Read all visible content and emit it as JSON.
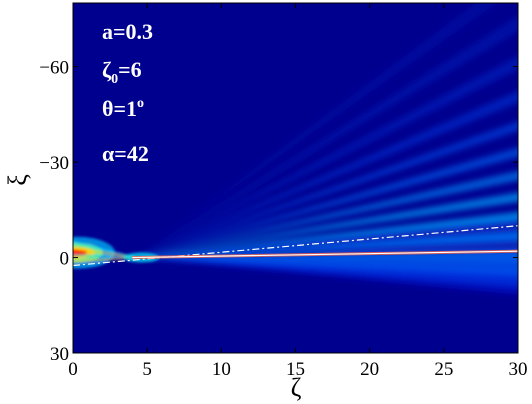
{
  "chart_data": {
    "type": "heatmap",
    "title": "",
    "xlabel": "ζ",
    "ylabel": "ξ",
    "xlim": [
      0,
      30
    ],
    "ylim": [
      30,
      -80
    ],
    "x_reversed": false,
    "y_axis_inverted": true,
    "x_ticks": [
      "0",
      "5",
      "10",
      "15",
      "20",
      "25",
      "30"
    ],
    "y_ticks": [
      "−60",
      "−30",
      "0",
      "30"
    ],
    "x_tick_values": [
      0,
      5,
      10,
      15,
      20,
      25,
      30
    ],
    "y_tick_values": [
      -60,
      -30,
      0,
      30
    ],
    "colormap": "jet",
    "background_color": "#00008f",
    "annotations": [
      {
        "label": "a=0.3"
      },
      {
        "label": "ζ",
        "sub": "0",
        "suffix": "=6"
      },
      {
        "label": "θ=1",
        "sup": "o"
      },
      {
        "label": "α=42"
      }
    ],
    "lines": [
      {
        "style": "dash-dot",
        "color": "#ffffff",
        "points": [
          [
            0,
            2.5
          ],
          [
            30,
            -10
          ]
        ]
      },
      {
        "style": "solid",
        "color": "#ffffff",
        "points": [
          [
            4,
            0
          ],
          [
            30,
            -2
          ]
        ]
      }
    ]
  }
}
